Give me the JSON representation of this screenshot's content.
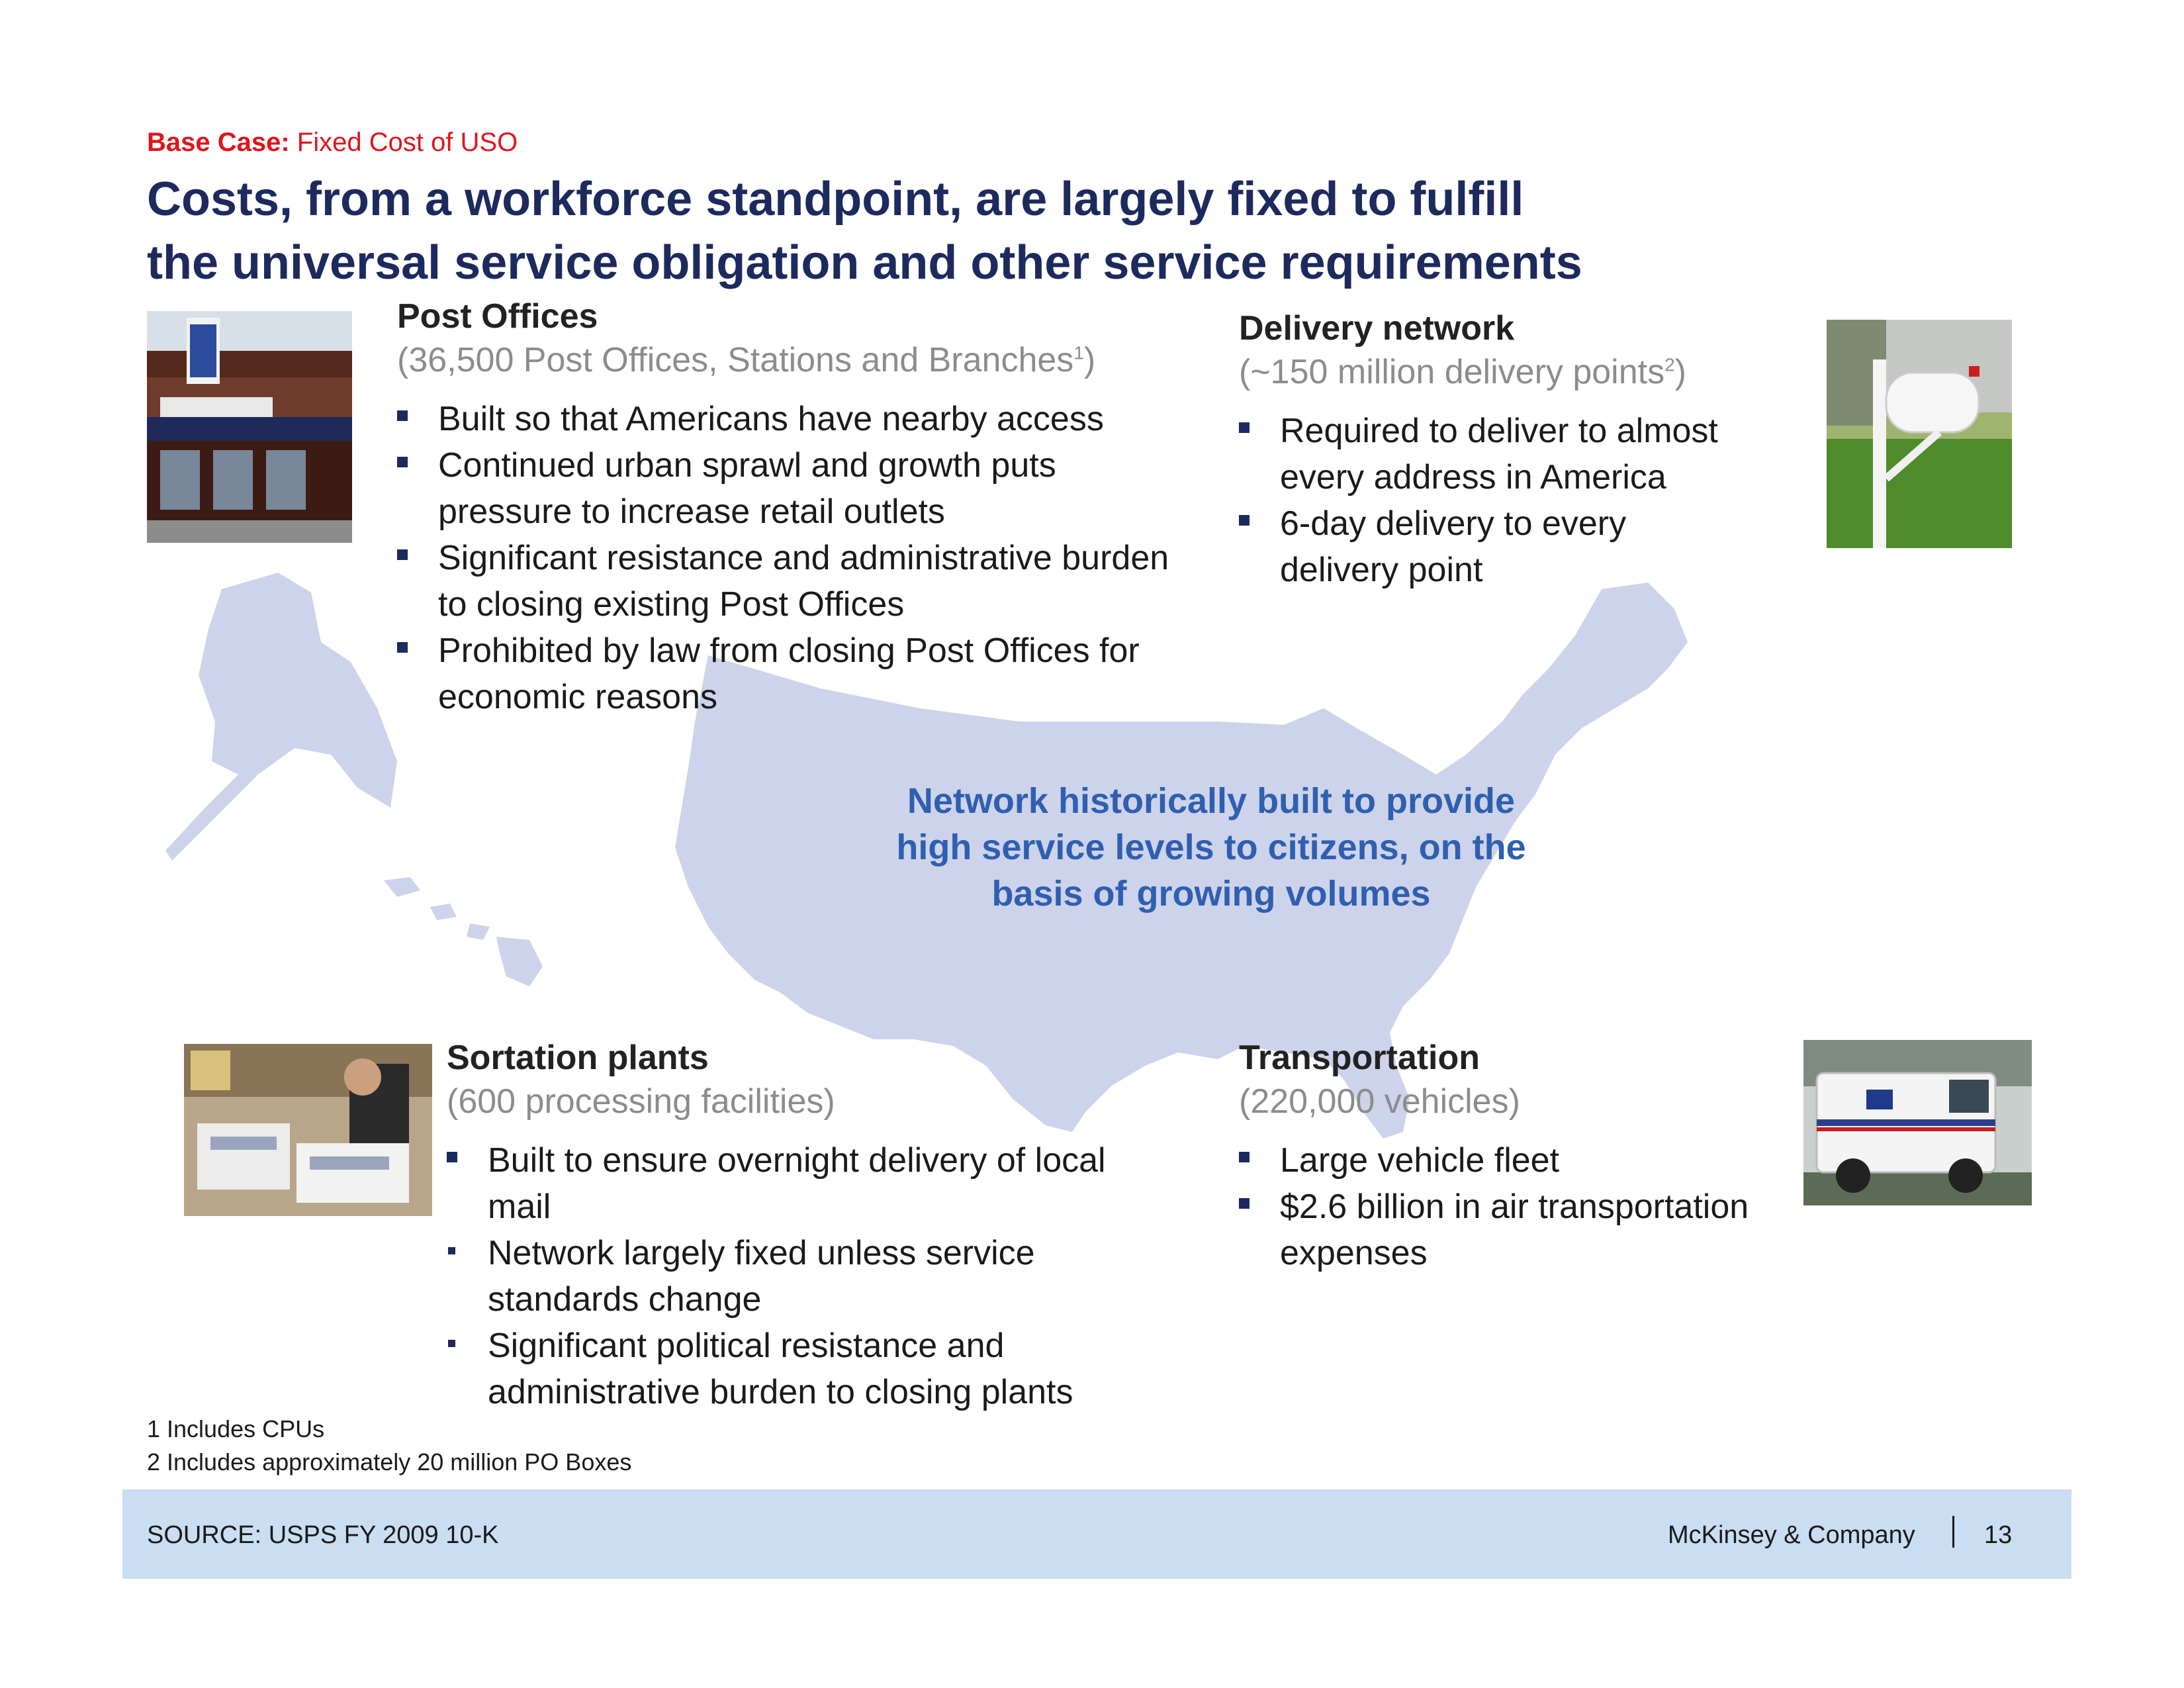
{
  "header": {
    "kicker_bold": "Base Case:",
    "kicker_rest": " Fixed Cost of USO",
    "title_line1": "Costs, from a workforce standpoint, are largely fixed to fulfill",
    "title_line2": "the universal service obligation and other service requirements"
  },
  "post_offices": {
    "title": "Post Offices",
    "sub_pre": "(36,500 Post Offices, Stations and Branches",
    "sub_sup": "1",
    "sub_post": ")",
    "bullets": [
      "Built so that Americans have nearby access",
      "Continued urban sprawl and growth puts pressure to increase retail outlets",
      "Significant resistance and administrative burden to closing existing Post Offices",
      "Prohibited by law from closing Post Offices for economic reasons"
    ]
  },
  "delivery": {
    "title": "Delivery network",
    "sub_pre": "(~150 million delivery points",
    "sub_sup": "2",
    "sub_post": ")",
    "bullets": [
      "Required to deliver to almost every address in America",
      "6-day delivery to every delivery point"
    ]
  },
  "center_text": "Network historically built to provide high service levels to citizens, on the basis of growing volumes",
  "sortation": {
    "title": "Sortation plants",
    "sub": "(600 processing facilities)",
    "bullets": [
      "Built to ensure overnight delivery of local mail",
      "Network largely fixed unless service standards change",
      "Significant political resistance and administrative burden to closing plants"
    ]
  },
  "transportation": {
    "title": "Transportation",
    "sub": "(220,000 vehicles)",
    "bullets": [
      "Large vehicle fleet",
      "$2.6 billion in air transportation expenses"
    ]
  },
  "footnotes": [
    "1 Includes CPUs",
    "2 Includes approximately 20 million PO Boxes"
  ],
  "footer": {
    "source": "SOURCE: USPS FY 2009 10-K",
    "brand": "McKinsey & Company",
    "page": "13"
  },
  "colors": {
    "title": "#1c2a5e",
    "kicker": "#e0141c",
    "callout": "#2f5fb0",
    "map": "#cdd3ea",
    "footer_band": "#c9def2"
  }
}
